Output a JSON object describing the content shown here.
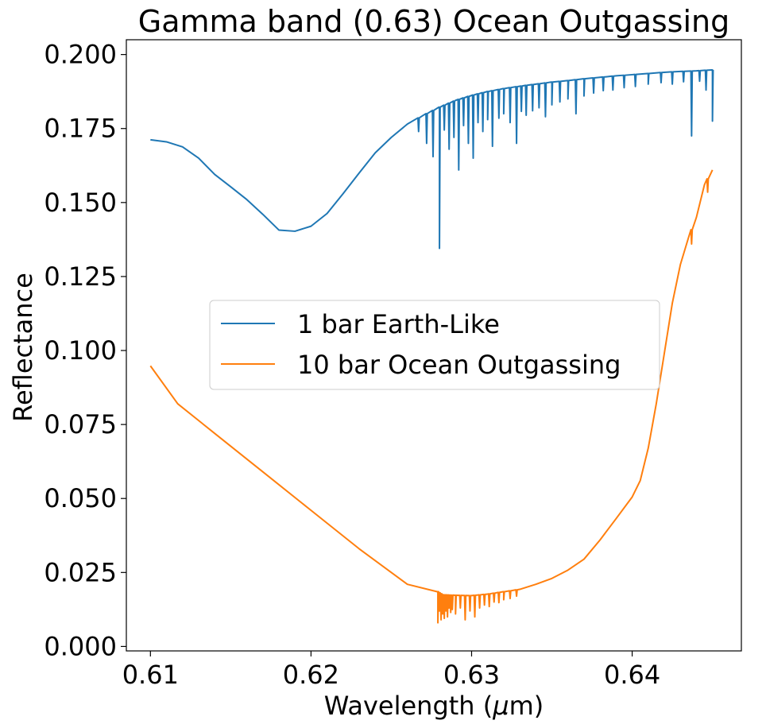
{
  "chart_data": {
    "type": "line",
    "title": "Gamma band (0.63) Ocean Outgassing",
    "xlabel_prefix": "Wavelength (",
    "xlabel_mu": "μ",
    "xlabel_suffix": "m)",
    "ylabel": "Reflectance",
    "xlim": [
      0.6085,
      0.6468
    ],
    "ylim": [
      -0.0015,
      0.205
    ],
    "xticks": [
      0.61,
      0.62,
      0.63,
      0.64
    ],
    "xtick_labels": [
      "0.61",
      "0.62",
      "0.63",
      "0.64"
    ],
    "yticks": [
      0.0,
      0.025,
      0.05,
      0.075,
      0.1,
      0.125,
      0.15,
      0.175,
      0.2
    ],
    "ytick_labels": [
      "0.000",
      "0.025",
      "0.050",
      "0.075",
      "0.100",
      "0.125",
      "0.150",
      "0.175",
      "0.200"
    ],
    "grid": false,
    "legend_position": "center-left",
    "series": [
      {
        "name": "1 bar Earth-Like",
        "color": "#1f77b4",
        "smooth": [
          [
            0.61,
            0.1712
          ],
          [
            0.611,
            0.1705
          ],
          [
            0.612,
            0.1688
          ],
          [
            0.613,
            0.165
          ],
          [
            0.614,
            0.1595
          ],
          [
            0.615,
            0.1553
          ],
          [
            0.616,
            0.151
          ],
          [
            0.617,
            0.146
          ],
          [
            0.618,
            0.1407
          ],
          [
            0.619,
            0.1403
          ],
          [
            0.62,
            0.142
          ],
          [
            0.621,
            0.1463
          ],
          [
            0.622,
            0.153
          ],
          [
            0.623,
            0.16
          ],
          [
            0.624,
            0.1668
          ],
          [
            0.625,
            0.172
          ],
          [
            0.626,
            0.1765
          ],
          [
            0.627,
            0.1795
          ],
          [
            0.628,
            0.1822
          ],
          [
            0.629,
            0.1845
          ],
          [
            0.63,
            0.1862
          ],
          [
            0.631,
            0.1875
          ],
          [
            0.632,
            0.1885
          ],
          [
            0.633,
            0.1893
          ],
          [
            0.634,
            0.19
          ],
          [
            0.635,
            0.1907
          ],
          [
            0.636,
            0.1912
          ],
          [
            0.637,
            0.1918
          ],
          [
            0.638,
            0.1923
          ],
          [
            0.639,
            0.1928
          ],
          [
            0.64,
            0.1932
          ],
          [
            0.641,
            0.1936
          ],
          [
            0.642,
            0.194
          ],
          [
            0.643,
            0.1943
          ],
          [
            0.644,
            0.1945
          ],
          [
            0.645,
            0.1948
          ]
        ],
        "dips": [
          [
            0.6267,
            0.174
          ],
          [
            0.6272,
            0.17
          ],
          [
            0.6276,
            0.1655
          ],
          [
            0.628,
            0.1345
          ],
          [
            0.6283,
            0.1745
          ],
          [
            0.6286,
            0.168
          ],
          [
            0.6289,
            0.172
          ],
          [
            0.6292,
            0.161
          ],
          [
            0.6295,
            0.176
          ],
          [
            0.6298,
            0.17
          ],
          [
            0.6301,
            0.165
          ],
          [
            0.6304,
            0.177
          ],
          [
            0.6307,
            0.174
          ],
          [
            0.631,
            0.178
          ],
          [
            0.6313,
            0.169
          ],
          [
            0.6317,
            0.1785
          ],
          [
            0.632,
            0.18
          ],
          [
            0.6324,
            0.177
          ],
          [
            0.6328,
            0.17
          ],
          [
            0.6331,
            0.1808
          ],
          [
            0.6334,
            0.1795
          ],
          [
            0.6338,
            0.181
          ],
          [
            0.6342,
            0.182
          ],
          [
            0.6346,
            0.179
          ],
          [
            0.635,
            0.183
          ],
          [
            0.6355,
            0.184
          ],
          [
            0.636,
            0.185
          ],
          [
            0.6365,
            0.18
          ],
          [
            0.637,
            0.186
          ],
          [
            0.6376,
            0.187
          ],
          [
            0.6382,
            0.1878
          ],
          [
            0.6388,
            0.188
          ],
          [
            0.6395,
            0.1888
          ],
          [
            0.6402,
            0.1892
          ],
          [
            0.641,
            0.19
          ],
          [
            0.6418,
            0.1905
          ],
          [
            0.6425,
            0.19
          ],
          [
            0.6432,
            0.1908
          ],
          [
            0.6437,
            0.1725
          ],
          [
            0.6442,
            0.191
          ],
          [
            0.6446,
            0.188
          ],
          [
            0.645,
            0.1775
          ]
        ]
      },
      {
        "name": "10 bar Ocean Outgassing",
        "color": "#ff7f0e",
        "smooth": [
          [
            0.61,
            0.0948
          ],
          [
            0.6117,
            0.082
          ],
          [
            0.614,
            0.072
          ],
          [
            0.617,
            0.059
          ],
          [
            0.62,
            0.046
          ],
          [
            0.623,
            0.033
          ],
          [
            0.626,
            0.021
          ],
          [
            0.6279,
            0.0185
          ],
          [
            0.6282,
            0.0175
          ],
          [
            0.629,
            0.0173
          ],
          [
            0.63,
            0.0172
          ],
          [
            0.631,
            0.0177
          ],
          [
            0.632,
            0.0185
          ],
          [
            0.633,
            0.0193
          ],
          [
            0.634,
            0.021
          ],
          [
            0.635,
            0.023
          ],
          [
            0.636,
            0.0258
          ],
          [
            0.637,
            0.0295
          ],
          [
            0.638,
            0.036
          ],
          [
            0.639,
            0.0432
          ],
          [
            0.64,
            0.0505
          ],
          [
            0.6405,
            0.056
          ],
          [
            0.641,
            0.067
          ],
          [
            0.6415,
            0.082
          ],
          [
            0.642,
            0.099
          ],
          [
            0.6425,
            0.116
          ],
          [
            0.643,
            0.129
          ],
          [
            0.6435,
            0.138
          ],
          [
            0.644,
            0.145
          ],
          [
            0.6445,
            0.156
          ],
          [
            0.645,
            0.161
          ]
        ],
        "dips": [
          [
            0.6279,
            0.008
          ],
          [
            0.628,
            0.012
          ],
          [
            0.6281,
            0.009
          ],
          [
            0.6282,
            0.011
          ],
          [
            0.6283,
            0.0095
          ],
          [
            0.6284,
            0.012
          ],
          [
            0.6285,
            0.01
          ],
          [
            0.6286,
            0.013
          ],
          [
            0.6287,
            0.0115
          ],
          [
            0.6288,
            0.0125
          ],
          [
            0.629,
            0.011
          ],
          [
            0.6293,
            0.013
          ],
          [
            0.6296,
            0.009
          ],
          [
            0.6299,
            0.012
          ],
          [
            0.6302,
            0.01
          ],
          [
            0.6305,
            0.013
          ],
          [
            0.6308,
            0.014
          ],
          [
            0.6311,
            0.0135
          ],
          [
            0.6314,
            0.015
          ],
          [
            0.6317,
            0.0148
          ],
          [
            0.632,
            0.0158
          ],
          [
            0.6324,
            0.0162
          ],
          [
            0.6328,
            0.017
          ],
          [
            0.6437,
            0.136
          ],
          [
            0.6447,
            0.1535
          ]
        ]
      }
    ]
  }
}
